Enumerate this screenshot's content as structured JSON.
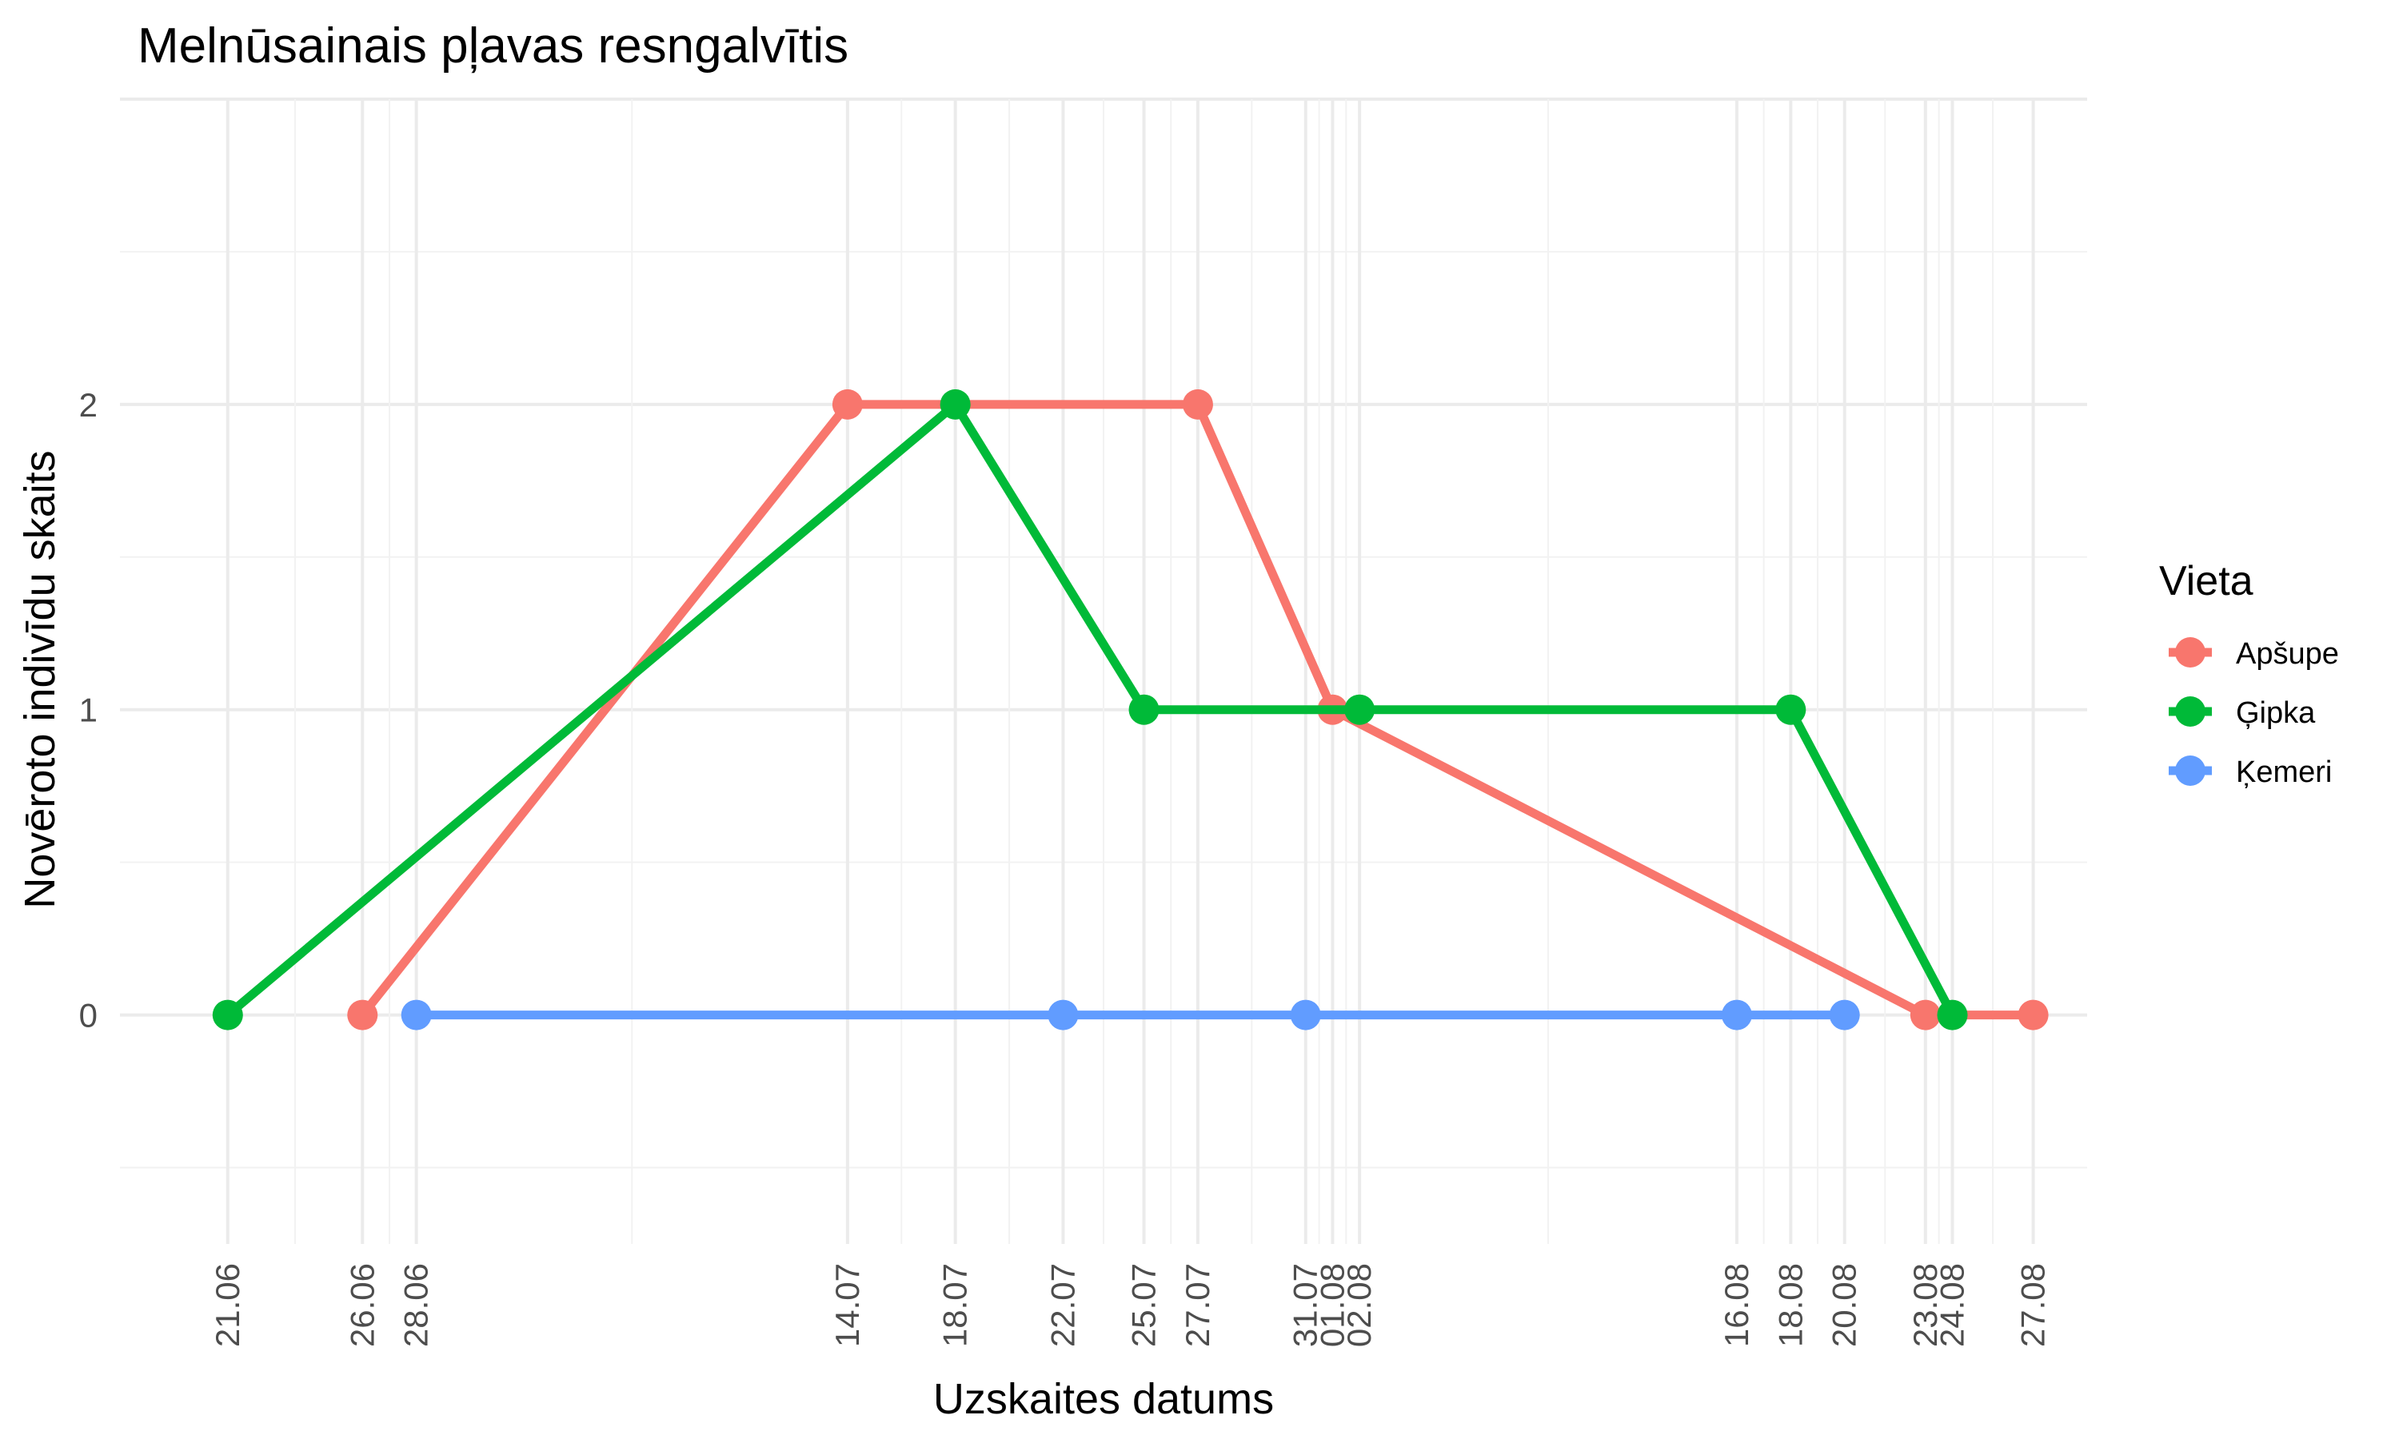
{
  "chart_data": {
    "type": "line",
    "title": "Melnūsainais pļavas resngalvītis",
    "xlabel": "Uzskaites datums",
    "ylabel": "Novēroto indivīdu skaits",
    "legend_title": "Vieta",
    "legend_position": "right",
    "grid": true,
    "x_tick_labels": [
      "21.06",
      "26.06",
      "28.06",
      "14.07",
      "18.07",
      "22.07",
      "25.07",
      "27.07",
      "31.07",
      "01.08",
      "02.08",
      "16.08",
      "18.08",
      "20.08",
      "23.08",
      "24.08",
      "27.08"
    ],
    "y_ticks": [
      0,
      1,
      2
    ],
    "ylim": [
      -0.75,
      3
    ],
    "series": [
      {
        "name": "Apšupe",
        "color": "#F8766D",
        "points": [
          [
            "26.06",
            0
          ],
          [
            "14.07",
            2
          ],
          [
            "27.07",
            2
          ],
          [
            "01.08",
            1
          ],
          [
            "23.08",
            0
          ],
          [
            "27.08",
            0
          ]
        ]
      },
      {
        "name": "Ģipka",
        "color": "#00BA38",
        "points": [
          [
            "21.06",
            0
          ],
          [
            "18.07",
            2
          ],
          [
            "25.07",
            1
          ],
          [
            "02.08",
            1
          ],
          [
            "18.08",
            1
          ],
          [
            "24.08",
            0
          ]
        ]
      },
      {
        "name": "Ķemeri",
        "color": "#619CFF",
        "points": [
          [
            "28.06",
            0
          ],
          [
            "22.07",
            0
          ],
          [
            "31.07",
            0
          ],
          [
            "16.08",
            0
          ],
          [
            "20.08",
            0
          ]
        ]
      }
    ]
  }
}
